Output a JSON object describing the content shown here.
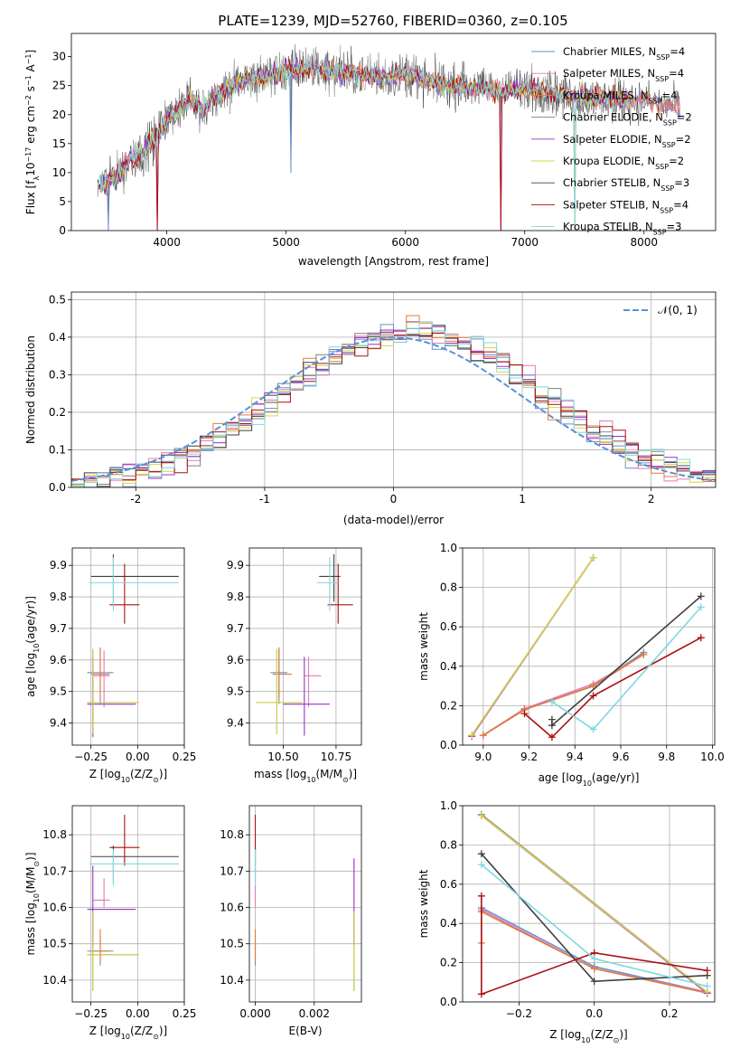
{
  "figure": {
    "title": "PLATE=1239, MJD=52760, FIBERID=0360, z=0.105"
  },
  "colors": {
    "Chabrier MILES": "#6a8fd0",
    "Salpeter MILES": "#e07cb7",
    "Kroupa MILES": "#e07b39",
    "Chabrier ELODIE": "#808080",
    "Salpeter ELODIE": "#9b30c8",
    "Kroupa ELODIE": "#d6d64a",
    "Chabrier STELIB": "#404040",
    "Salpeter STELIB": "#aa1111",
    "Kroupa STELIB": "#7fd8e0",
    "normal": "#5b8fd9"
  },
  "chart_data": [
    {
      "id": "spectrum",
      "type": "line",
      "title": "PLATE=1239, MJD=52760, FIBERID=0360, z=0.105",
      "xlabel": "wavelength [Angstrom, rest frame]",
      "ylabel_parts": {
        "a": "Flux [f",
        "b": "λ",
        "c": "10",
        "d": "−17",
        "e": " erg cm",
        "f": "−2",
        "g": " s",
        "h": "−1",
        "i": " A",
        "j": "−1",
        "k": "]"
      },
      "xlim": [
        3200,
        8600
      ],
      "ylim": [
        0,
        34
      ],
      "xticks": [
        4000,
        5000,
        6000,
        7000,
        8000
      ],
      "yticks": [
        0,
        5,
        10,
        15,
        20,
        25,
        30
      ],
      "grid": false,
      "legend_position": "right",
      "legend": [
        {
          "model": "Chabrier MILES",
          "n": "4"
        },
        {
          "model": "Salpeter MILES",
          "n": "4"
        },
        {
          "model": "Kroupa MILES",
          "n": "4"
        },
        {
          "model": "Chabrier ELODIE",
          "n": "2"
        },
        {
          "model": "Salpeter ELODIE",
          "n": "2"
        },
        {
          "model": "Kroupa ELODIE",
          "n": "2"
        },
        {
          "model": "Chabrier STELIB",
          "n": "3"
        },
        {
          "model": "Salpeter STELIB",
          "n": "4"
        },
        {
          "model": "Kroupa STELIB",
          "n": "3"
        }
      ],
      "legend_prefix": "N",
      "legend_sub": "SSP",
      "continuum_x": [
        3420,
        3500,
        3600,
        3700,
        3800,
        3900,
        4000,
        4100,
        4200,
        4300,
        4400,
        4500,
        4600,
        4800,
        5000,
        5200,
        5400,
        5600,
        5800,
        6000,
        6200,
        6400,
        6600,
        6800,
        7000,
        7200,
        7400,
        7600,
        7800,
        8000,
        8200,
        8300
      ],
      "continuum_y": [
        7.5,
        8.5,
        10.0,
        12.5,
        13.5,
        16.0,
        19.0,
        21.0,
        22.5,
        21.0,
        23.5,
        24.5,
        25.5,
        26.5,
        27.5,
        28.0,
        27.5,
        27.0,
        26.5,
        27.0,
        25.5,
        25.0,
        24.5,
        24.0,
        24.5,
        24.0,
        23.0,
        23.0,
        22.5,
        22.5,
        21.5,
        21.5
      ],
      "dips": [
        {
          "x": 3510,
          "y": 0
        },
        {
          "x": 3920,
          "y": 0
        },
        {
          "x": 5040,
          "y": 10
        },
        {
          "x": 6800,
          "y": 0
        },
        {
          "x": 7420,
          "y": 0
        }
      ]
    },
    {
      "id": "residuals",
      "type": "line",
      "xlabel": "(data-model)/error",
      "ylabel": "Normed distribution",
      "xlim": [
        -2.5,
        2.5
      ],
      "ylim": [
        0,
        0.52
      ],
      "xticks": [
        -2,
        -1,
        0,
        1,
        2
      ],
      "yticks": [
        0.0,
        0.1,
        0.2,
        0.3,
        0.4,
        0.5
      ],
      "grid": true,
      "legend_position": "top-right",
      "legend": [
        "𝒩(0, 1)"
      ],
      "bins_x": [
        -2.5,
        2.5
      ],
      "bin_width": 0.1
    },
    {
      "id": "age_vs_Z",
      "type": "scatter",
      "xlabel_parts": {
        "a": "Z [log",
        "b": "10",
        "c": "(Z/Z",
        "d": "⊙",
        "e": ")]"
      },
      "ylabel_parts": {
        "a": "age  [log",
        "b": "10",
        "c": "(age/yr)]"
      },
      "xlim": [
        -0.35,
        0.25
      ],
      "ylim": [
        9.33,
        9.955
      ],
      "xticks": [
        -0.25,
        0.0,
        0.25
      ],
      "xtick_labels": [
        "−0.25",
        "0.00",
        "0.25"
      ],
      "yticks": [
        9.4,
        9.5,
        9.6,
        9.7,
        9.8,
        9.9
      ],
      "grid": true,
      "points": [
        {
          "model": "Chabrier MILES",
          "x": -0.2,
          "xerr": [
            0.07,
            0.07
          ],
          "y": 9.56,
          "yerr": [
            0.1,
            0.08
          ]
        },
        {
          "model": "Salpeter MILES",
          "x": -0.18,
          "xerr": [
            0.06,
            0.03
          ],
          "y": 9.55,
          "yerr": [
            0.1,
            0.08
          ]
        },
        {
          "model": "Kroupa MILES",
          "x": -0.2,
          "xerr": [
            0.05,
            0.05
          ],
          "y": 9.555,
          "yerr": [
            0.08,
            0.08
          ]
        },
        {
          "model": "Chabrier ELODIE",
          "x": -0.24,
          "xerr": [
            0.03,
            0.24
          ],
          "y": 9.465,
          "yerr": [
            0.11,
            0.17
          ]
        },
        {
          "model": "Salpeter ELODIE",
          "x": -0.24,
          "xerr": [
            0.03,
            0.23
          ],
          "y": 9.46,
          "yerr": [
            0.1,
            0.15
          ]
        },
        {
          "model": "Kroupa ELODIE",
          "x": -0.24,
          "xerr": [
            0.03,
            0.25
          ],
          "y": 9.465,
          "yerr": [
            0.1,
            0.17
          ]
        },
        {
          "model": "Chabrier STELIB",
          "x": -0.13,
          "xerr": [
            0.12,
            0.35
          ],
          "y": 9.865,
          "yerr": [
            0.09,
            0.07
          ]
        },
        {
          "model": "Salpeter STELIB",
          "x": -0.07,
          "xerr": [
            0.08,
            0.08
          ],
          "y": 9.775,
          "yerr": [
            0.06,
            0.13
          ]
        },
        {
          "model": "Kroupa STELIB",
          "x": -0.13,
          "xerr": [
            0.13,
            0.35
          ],
          "y": 9.845,
          "yerr": [
            0.09,
            0.08
          ]
        }
      ]
    },
    {
      "id": "age_vs_mass",
      "type": "scatter",
      "xlabel_parts": {
        "a": "mass [log",
        "b": "10",
        "c": "(M/M",
        "d": "⊙",
        "e": ")]"
      },
      "xlim": [
        10.34,
        10.87
      ],
      "ylim": [
        9.33,
        9.955
      ],
      "xticks": [
        10.5,
        10.75
      ],
      "xtick_labels": [
        "10.50",
        "10.75"
      ],
      "yticks": [
        9.4,
        9.5,
        9.6,
        9.7,
        9.8,
        9.9
      ],
      "grid": true,
      "points": [
        {
          "model": "Chabrier MILES",
          "x": 10.48,
          "xerr": [
            0.04,
            0.04
          ],
          "y": 9.56,
          "yerr": [
            0.1,
            0.08
          ]
        },
        {
          "model": "Salpeter MILES",
          "x": 10.62,
          "xerr": [
            0.02,
            0.06
          ],
          "y": 9.55,
          "yerr": [
            0.1,
            0.06
          ]
        },
        {
          "model": "Kroupa MILES",
          "x": 10.48,
          "xerr": [
            0.03,
            0.06
          ],
          "y": 9.555,
          "yerr": [
            0.08,
            0.08
          ]
        },
        {
          "model": "Chabrier ELODIE",
          "x": 10.47,
          "xerr": [
            0.1,
            0.12
          ],
          "y": 9.465,
          "yerr": [
            0.1,
            0.17
          ]
        },
        {
          "model": "Salpeter ELODIE",
          "x": 10.6,
          "xerr": [
            0.1,
            0.12
          ],
          "y": 9.46,
          "yerr": [
            0.1,
            0.15
          ]
        },
        {
          "model": "Kroupa ELODIE",
          "x": 10.47,
          "xerr": [
            0.1,
            0.12
          ],
          "y": 9.465,
          "yerr": [
            0.1,
            0.17
          ]
        },
        {
          "model": "Chabrier STELIB",
          "x": 10.74,
          "xerr": [
            0.07,
            0.03
          ],
          "y": 9.865,
          "yerr": [
            0.08,
            0.07
          ]
        },
        {
          "model": "Salpeter STELIB",
          "x": 10.76,
          "xerr": [
            0.05,
            0.07
          ],
          "y": 9.775,
          "yerr": [
            0.06,
            0.13
          ]
        },
        {
          "model": "Kroupa STELIB",
          "x": 10.72,
          "xerr": [
            0.06,
            0.04
          ],
          "y": 9.845,
          "yerr": [
            0.09,
            0.08
          ]
        }
      ]
    },
    {
      "id": "weight_vs_age",
      "type": "line",
      "xlabel_parts": {
        "a": "age  [log",
        "b": "10",
        "c": "(age/yr)]"
      },
      "ylabel": "mass weight",
      "xlim": [
        8.91,
        10.01
      ],
      "ylim": [
        0,
        1.0
      ],
      "xticks": [
        9.0,
        9.2,
        9.4,
        9.6,
        9.8,
        10.0
      ],
      "xtick_labels": [
        "9.0",
        "9.2",
        "9.4",
        "9.6",
        "9.8",
        "10.0"
      ],
      "yticks": [
        0.0,
        0.2,
        0.4,
        0.6,
        0.8,
        1.0
      ],
      "grid": true,
      "series": [
        {
          "model": "Chabrier MILES",
          "x": [
            9.0,
            9.18,
            9.48,
            9.7
          ],
          "y": [
            0.05,
            0.18,
            0.3,
            0.47
          ]
        },
        {
          "model": "Salpeter MILES",
          "x": [
            9.0,
            9.18,
            9.48,
            9.7
          ],
          "y": [
            0.05,
            0.185,
            0.31,
            0.46
          ]
        },
        {
          "model": "Kroupa MILES",
          "x": [
            9.0,
            9.18,
            9.48,
            9.7
          ],
          "y": [
            0.05,
            0.18,
            0.3,
            0.46
          ]
        },
        {
          "model": "Chabrier ELODIE",
          "x": [
            8.95,
            9.48
          ],
          "y": [
            0.05,
            0.95
          ]
        },
        {
          "model": "Salpeter ELODIE",
          "x": [
            8.95,
            9.48
          ],
          "y": [
            0.045,
            0.95
          ]
        },
        {
          "model": "Kroupa ELODIE",
          "x": [
            8.95,
            9.48
          ],
          "y": [
            0.05,
            0.95
          ]
        },
        {
          "model": "Chabrier STELIB",
          "x": [
            9.3,
            9.3,
            9.95
          ],
          "y": [
            0.13,
            0.1,
            0.755
          ]
        },
        {
          "model": "Salpeter STELIB",
          "x": [
            9.18,
            9.3,
            9.48,
            9.95
          ],
          "y": [
            0.16,
            0.04,
            0.25,
            0.545
          ]
        },
        {
          "model": "Kroupa STELIB",
          "x": [
            9.3,
            9.48,
            9.95
          ],
          "y": [
            0.22,
            0.08,
            0.7
          ]
        }
      ]
    },
    {
      "id": "mass_vs_Z",
      "type": "scatter",
      "xlabel_parts": {
        "a": "Z [log",
        "b": "10",
        "c": "(Z/Z",
        "d": "⊙",
        "e": ")]"
      },
      "ylabel_parts": {
        "a": "mass [log",
        "b": "10",
        "c": "(M/M",
        "d": "⊙",
        "e": ")]"
      },
      "xlim": [
        -0.35,
        0.25
      ],
      "ylim": [
        10.34,
        10.88
      ],
      "xticks": [
        -0.25,
        0.0,
        0.25
      ],
      "xtick_labels": [
        "−0.25",
        "0.00",
        "0.25"
      ],
      "yticks": [
        10.4,
        10.5,
        10.6,
        10.7,
        10.8
      ],
      "grid": true,
      "points": [
        {
          "model": "Chabrier MILES",
          "x": -0.2,
          "xerr": [
            0.07,
            0.07
          ],
          "y": 10.48,
          "yerr": [
            0.04,
            0.04
          ]
        },
        {
          "model": "Salpeter MILES",
          "x": -0.18,
          "xerr": [
            0.06,
            0.03
          ],
          "y": 10.62,
          "yerr": [
            0.02,
            0.06
          ]
        },
        {
          "model": "Kroupa MILES",
          "x": -0.2,
          "xerr": [
            0.05,
            0.05
          ],
          "y": 10.48,
          "yerr": [
            0.03,
            0.06
          ]
        },
        {
          "model": "Chabrier ELODIE",
          "x": -0.24,
          "xerr": [
            0.03,
            0.24
          ],
          "y": 10.47,
          "yerr": [
            0.1,
            0.12
          ]
        },
        {
          "model": "Salpeter ELODIE",
          "x": -0.24,
          "xerr": [
            0.03,
            0.23
          ],
          "y": 10.595,
          "yerr": [
            0.1,
            0.12
          ]
        },
        {
          "model": "Kroupa ELODIE",
          "x": -0.24,
          "xerr": [
            0.03,
            0.25
          ],
          "y": 10.47,
          "yerr": [
            0.1,
            0.12
          ]
        },
        {
          "model": "Chabrier STELIB",
          "x": -0.13,
          "xerr": [
            0.12,
            0.35
          ],
          "y": 10.74,
          "yerr": [
            0.07,
            0.03
          ]
        },
        {
          "model": "Salpeter STELIB",
          "x": -0.07,
          "xerr": [
            0.08,
            0.08
          ],
          "y": 10.765,
          "yerr": [
            0.05,
            0.09
          ]
        },
        {
          "model": "Kroupa STELIB",
          "x": -0.13,
          "xerr": [
            0.13,
            0.35
          ],
          "y": 10.72,
          "yerr": [
            0.06,
            0.04
          ]
        }
      ]
    },
    {
      "id": "mass_vs_ebv",
      "type": "scatter",
      "xlabel": "E(B-V)",
      "xlim": [
        -0.0002,
        0.0036
      ],
      "ylim": [
        10.34,
        10.88
      ],
      "xticks": [
        0.0,
        0.002
      ],
      "xtick_labels": [
        "0.000",
        "0.002"
      ],
      "yticks": [
        10.4,
        10.5,
        10.6,
        10.7,
        10.8
      ],
      "grid": true,
      "points": [
        {
          "model": "Chabrier MILES",
          "x": 0.0,
          "y": 10.48,
          "yerr": [
            0.04,
            0.04
          ]
        },
        {
          "model": "Salpeter MILES",
          "x": 0.0,
          "y": 10.62,
          "yerr": [
            0.02,
            0.06
          ]
        },
        {
          "model": "Kroupa MILES",
          "x": 0.0,
          "y": 10.48,
          "yerr": [
            0.03,
            0.06
          ]
        },
        {
          "model": "Chabrier ELODIE",
          "x": 0.00335,
          "y": 10.47,
          "yerr": [
            0.1,
            0.12
          ]
        },
        {
          "model": "Salpeter ELODIE",
          "x": 0.00335,
          "y": 10.595,
          "yerr": [
            0.1,
            0.14
          ]
        },
        {
          "model": "Kroupa ELODIE",
          "x": 0.00335,
          "y": 10.47,
          "yerr": [
            0.1,
            0.12
          ]
        },
        {
          "model": "Chabrier STELIB",
          "x": 0.0,
          "y": 10.74,
          "yerr": [
            0.07,
            0.03
          ]
        },
        {
          "model": "Salpeter STELIB",
          "x": 0.0,
          "y": 10.765,
          "yerr": [
            0.05,
            0.09
          ]
        },
        {
          "model": "Kroupa STELIB",
          "x": 0.0,
          "y": 10.72,
          "yerr": [
            0.06,
            0.04
          ]
        }
      ]
    },
    {
      "id": "weight_vs_Z",
      "type": "line",
      "xlabel_parts": {
        "a": "Z [log",
        "b": "10",
        "c": "(Z/Z",
        "d": "⊙",
        "e": ")]"
      },
      "ylabel": "mass weight",
      "xlim": [
        -0.35,
        0.32
      ],
      "ylim": [
        0,
        1.0
      ],
      "xticks": [
        -0.2,
        0.0,
        0.2
      ],
      "xtick_labels": [
        "−0.2",
        "0.0",
        "0.2"
      ],
      "yticks": [
        0.0,
        0.2,
        0.4,
        0.6,
        0.8,
        1.0
      ],
      "grid": true,
      "series": [
        {
          "model": "Chabrier MILES",
          "x": [
            -0.3,
            0.0,
            0.3
          ],
          "y": [
            0.48,
            0.18,
            0.05
          ]
        },
        {
          "model": "Salpeter MILES",
          "x": [
            -0.3,
            0.0,
            0.3
          ],
          "y": [
            0.47,
            0.17,
            0.05
          ]
        },
        {
          "model": "Kroupa MILES",
          "x": [
            -0.3,
            -0.3,
            0.0,
            0.3
          ],
          "y": [
            0.3,
            0.46,
            0.17,
            0.045
          ]
        },
        {
          "model": "Chabrier ELODIE",
          "x": [
            -0.3,
            0.3
          ],
          "y": [
            0.955,
            0.05
          ]
        },
        {
          "model": "Salpeter ELODIE",
          "x": [
            -0.3,
            0.3
          ],
          "y": [
            0.95,
            0.045
          ]
        },
        {
          "model": "Kroupa ELODIE",
          "x": [
            -0.3,
            0.3
          ],
          "y": [
            0.95,
            0.05
          ]
        },
        {
          "model": "Chabrier STELIB",
          "x": [
            -0.3,
            0.0,
            0.3
          ],
          "y": [
            0.755,
            0.105,
            0.135
          ]
        },
        {
          "model": "Salpeter STELIB",
          "x": [
            -0.3,
            -0.3,
            0.0,
            0.3
          ],
          "y": [
            0.54,
            0.04,
            0.25,
            0.16
          ]
        },
        {
          "model": "Kroupa STELIB",
          "x": [
            -0.3,
            0.0,
            0.3
          ],
          "y": [
            0.7,
            0.22,
            0.08
          ]
        }
      ]
    }
  ]
}
